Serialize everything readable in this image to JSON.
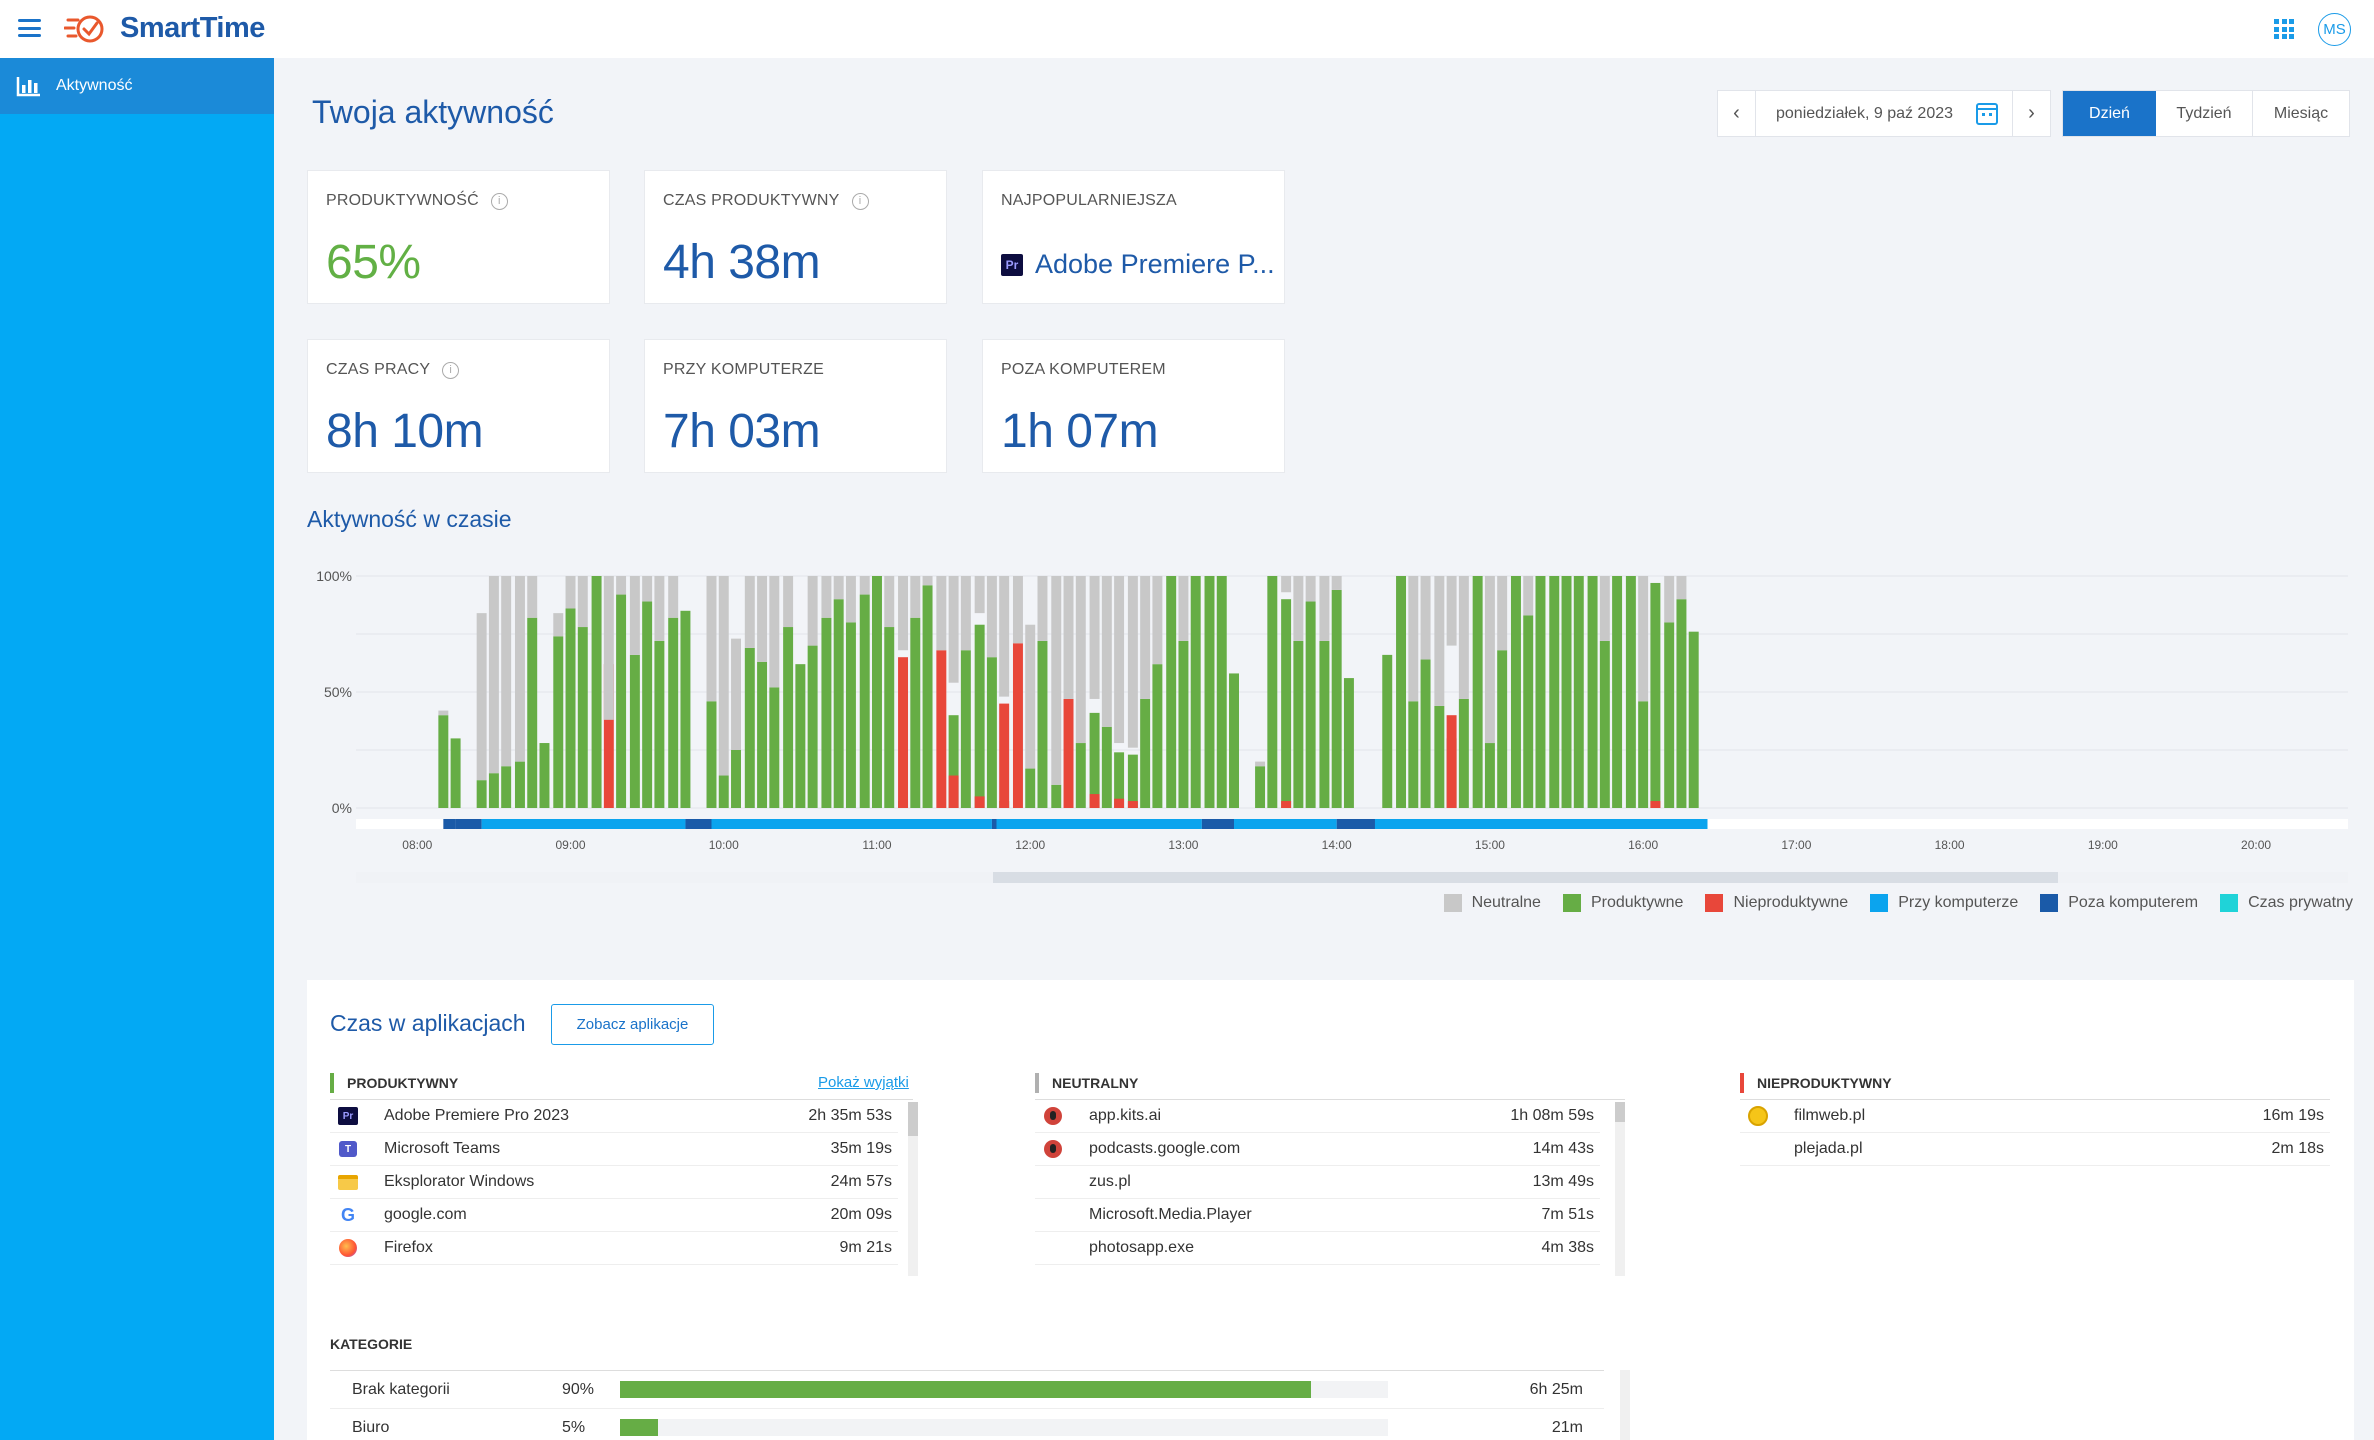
{
  "app": {
    "name": "SmartTime",
    "user_initials": "MS"
  },
  "sidebar": {
    "items": [
      {
        "label": "Aktywność"
      }
    ]
  },
  "page": {
    "title": "Twoja aktywność"
  },
  "datebar": {
    "date": "poniedziałek, 9 paź 2023",
    "periods": [
      "Dzień",
      "Tydzień",
      "Miesiąc"
    ],
    "active_period": "Dzień"
  },
  "stats": {
    "productivity": {
      "label": "PRODUKTYWNOŚĆ",
      "value": "65%"
    },
    "productive_time": {
      "label": "CZAS PRODUKTYWNY",
      "value": "4h 38m"
    },
    "most_popular": {
      "label": "NAJPOPULARNIEJSZA",
      "value": "Adobe Premiere P...",
      "icon": "Pr"
    },
    "work_time": {
      "label": "CZAS PRACY",
      "value": "8h 10m"
    },
    "at_computer": {
      "label": "PRZY KOMPUTERZE",
      "value": "7h 03m"
    },
    "away_computer": {
      "label": "POZA KOMPUTEREM",
      "value": "1h 07m"
    }
  },
  "activity": {
    "title": "Aktywność w czasie"
  },
  "colors": {
    "neutral": "#c8c8c8",
    "productive": "#66ad45",
    "unproductive": "#e8473a",
    "at_computer": "#0ba4ee",
    "away_computer": "#1a5aa8",
    "private": "#1fd3d8"
  },
  "chart_data": {
    "type": "bar",
    "stacked": true,
    "y_ticks": [
      "100%",
      "50%",
      "0%"
    ],
    "x_ticks": [
      "08:00",
      "09:00",
      "10:00",
      "11:00",
      "12:00",
      "13:00",
      "14:00",
      "15:00",
      "16:00",
      "17:00",
      "18:00",
      "19:00",
      "20:00"
    ],
    "x_range_hours": [
      7.6,
      20.6
    ],
    "ylim": [
      0,
      100
    ],
    "bar_interval_minutes": 5,
    "bars": [
      {
        "t": 8.17,
        "p": 40,
        "n": 2,
        "u": 0
      },
      {
        "t": 8.25,
        "p": 30,
        "n": 0,
        "u": 0
      },
      {
        "t": 8.42,
        "p": 12,
        "n": 72,
        "u": 0
      },
      {
        "t": 8.5,
        "p": 15,
        "n": 85,
        "u": 0
      },
      {
        "t": 8.58,
        "p": 18,
        "n": 82,
        "u": 0
      },
      {
        "t": 8.67,
        "p": 20,
        "n": 80,
        "u": 0
      },
      {
        "t": 8.75,
        "p": 82,
        "n": 18,
        "u": 0
      },
      {
        "t": 8.83,
        "p": 28,
        "n": 0,
        "u": 0
      },
      {
        "t": 8.92,
        "p": 74,
        "n": 10,
        "u": 0
      },
      {
        "t": 9.0,
        "p": 86,
        "n": 14,
        "u": 0
      },
      {
        "t": 9.08,
        "p": 78,
        "n": 22,
        "u": 0
      },
      {
        "t": 9.17,
        "p": 100,
        "n": 0,
        "u": 0
      },
      {
        "t": 9.25,
        "p": 38,
        "n": 62,
        "u": 62
      },
      {
        "t": 9.33,
        "p": 92,
        "n": 8,
        "u": 0
      },
      {
        "t": 9.42,
        "p": 66,
        "n": 34,
        "u": 0
      },
      {
        "t": 9.5,
        "p": 89,
        "n": 11,
        "u": 0
      },
      {
        "t": 9.58,
        "p": 72,
        "n": 28,
        "u": 0
      },
      {
        "t": 9.67,
        "p": 82,
        "n": 18,
        "u": 0
      },
      {
        "t": 9.75,
        "p": 85,
        "n": 0,
        "u": 0
      },
      {
        "t": 9.92,
        "p": 46,
        "n": 54,
        "u": 0
      },
      {
        "t": 10.0,
        "p": 14,
        "n": 86,
        "u": 0
      },
      {
        "t": 10.08,
        "p": 25,
        "n": 48,
        "u": 0
      },
      {
        "t": 10.17,
        "p": 69,
        "n": 31,
        "u": 0
      },
      {
        "t": 10.25,
        "p": 63,
        "n": 37,
        "u": 0
      },
      {
        "t": 10.33,
        "p": 52,
        "n": 48,
        "u": 0
      },
      {
        "t": 10.42,
        "p": 78,
        "n": 22,
        "u": 0
      },
      {
        "t": 10.5,
        "p": 62,
        "n": 0,
        "u": 0
      },
      {
        "t": 10.58,
        "p": 70,
        "n": 30,
        "u": 0
      },
      {
        "t": 10.67,
        "p": 82,
        "n": 18,
        "u": 0
      },
      {
        "t": 10.75,
        "p": 90,
        "n": 10,
        "u": 0
      },
      {
        "t": 10.83,
        "p": 80,
        "n": 20,
        "u": 0
      },
      {
        "t": 10.92,
        "p": 92,
        "n": 8,
        "u": 0
      },
      {
        "t": 11.0,
        "p": 100,
        "n": 0,
        "u": 0
      },
      {
        "t": 11.08,
        "p": 78,
        "n": 22,
        "u": 0
      },
      {
        "t": 11.17,
        "p": 68,
        "n": 32,
        "u": 65
      },
      {
        "t": 11.25,
        "p": 82,
        "n": 18,
        "u": 0
      },
      {
        "t": 11.33,
        "p": 96,
        "n": 4,
        "u": 0
      },
      {
        "t": 11.42,
        "p": 68,
        "n": 32,
        "u": 68
      },
      {
        "t": 11.5,
        "p": 54,
        "n": 46,
        "u": 14
      },
      {
        "t": 11.58,
        "p": 68,
        "n": 32,
        "u": 0
      },
      {
        "t": 11.67,
        "p": 84,
        "n": 16,
        "u": 5
      },
      {
        "t": 11.75,
        "p": 65,
        "n": 35,
        "u": 0
      },
      {
        "t": 11.83,
        "p": 48,
        "n": 52,
        "u": 45
      },
      {
        "t": 11.92,
        "p": 71,
        "n": 29,
        "u": 71
      },
      {
        "t": 12.0,
        "p": 17,
        "n": 62,
        "u": 0
      },
      {
        "t": 12.08,
        "p": 72,
        "n": 28,
        "u": 0
      },
      {
        "t": 12.17,
        "p": 10,
        "n": 90,
        "u": 0
      },
      {
        "t": 12.25,
        "p": 47,
        "n": 53,
        "u": 47
      },
      {
        "t": 12.33,
        "p": 28,
        "n": 72,
        "u": 0
      },
      {
        "t": 12.42,
        "p": 47,
        "n": 53,
        "u": 6
      },
      {
        "t": 12.5,
        "p": 35,
        "n": 65,
        "u": 0
      },
      {
        "t": 12.58,
        "p": 28,
        "n": 72,
        "u": 4
      },
      {
        "t": 12.67,
        "p": 26,
        "n": 74,
        "u": 3
      },
      {
        "t": 12.75,
        "p": 47,
        "n": 53,
        "u": 0
      },
      {
        "t": 12.83,
        "p": 62,
        "n": 38,
        "u": 0
      },
      {
        "t": 12.92,
        "p": 100,
        "n": 0,
        "u": 0
      },
      {
        "t": 13.0,
        "p": 72,
        "n": 28,
        "u": 0
      },
      {
        "t": 13.08,
        "p": 100,
        "n": 0,
        "u": 0
      },
      {
        "t": 13.17,
        "p": 100,
        "n": 0,
        "u": 0
      },
      {
        "t": 13.25,
        "p": 100,
        "n": 0,
        "u": 0
      },
      {
        "t": 13.33,
        "p": 58,
        "n": 0,
        "u": 0
      },
      {
        "t": 13.5,
        "p": 18,
        "n": 2,
        "u": 0
      },
      {
        "t": 13.58,
        "p": 100,
        "n": 0,
        "u": 0
      },
      {
        "t": 13.67,
        "p": 93,
        "n": 7,
        "u": 3
      },
      {
        "t": 13.75,
        "p": 72,
        "n": 28,
        "u": 0
      },
      {
        "t": 13.83,
        "p": 89,
        "n": 11,
        "u": 0
      },
      {
        "t": 13.92,
        "p": 72,
        "n": 28,
        "u": 0
      },
      {
        "t": 14.0,
        "p": 94,
        "n": 6,
        "u": 0
      },
      {
        "t": 14.08,
        "p": 56,
        "n": 0,
        "u": 0
      },
      {
        "t": 14.33,
        "p": 66,
        "n": 0,
        "u": 0
      },
      {
        "t": 14.42,
        "p": 100,
        "n": 0,
        "u": 0
      },
      {
        "t": 14.5,
        "p": 46,
        "n": 54,
        "u": 0
      },
      {
        "t": 14.58,
        "p": 64,
        "n": 36,
        "u": 0
      },
      {
        "t": 14.67,
        "p": 44,
        "n": 56,
        "u": 0
      },
      {
        "t": 14.75,
        "p": 70,
        "n": 30,
        "u": 40
      },
      {
        "t": 14.83,
        "p": 47,
        "n": 53,
        "u": 0
      },
      {
        "t": 14.92,
        "p": 100,
        "n": 0,
        "u": 0
      },
      {
        "t": 15.0,
        "p": 28,
        "n": 72,
        "u": 0
      },
      {
        "t": 15.08,
        "p": 68,
        "n": 32,
        "u": 0
      },
      {
        "t": 15.17,
        "p": 100,
        "n": 0,
        "u": 0
      },
      {
        "t": 15.25,
        "p": 83,
        "n": 17,
        "u": 0
      },
      {
        "t": 15.33,
        "p": 100,
        "n": 0,
        "u": 0
      },
      {
        "t": 15.42,
        "p": 100,
        "n": 0,
        "u": 0
      },
      {
        "t": 15.5,
        "p": 100,
        "n": 0,
        "u": 0
      },
      {
        "t": 15.58,
        "p": 100,
        "n": 0,
        "u": 0
      },
      {
        "t": 15.67,
        "p": 100,
        "n": 0,
        "u": 0
      },
      {
        "t": 15.75,
        "p": 72,
        "n": 28,
        "u": 0
      },
      {
        "t": 15.83,
        "p": 100,
        "n": 0,
        "u": 0
      },
      {
        "t": 15.92,
        "p": 100,
        "n": 0,
        "u": 0
      },
      {
        "t": 16.0,
        "p": 46,
        "n": 54,
        "u": 0
      },
      {
        "t": 16.08,
        "p": 100,
        "n": 0,
        "u": 3
      },
      {
        "t": 16.17,
        "p": 80,
        "n": 20,
        "u": 0
      },
      {
        "t": 16.25,
        "p": 90,
        "n": 10,
        "u": 0
      },
      {
        "t": 16.33,
        "p": 76,
        "n": 0,
        "u": 0
      }
    ],
    "presence_strip": [
      {
        "from": 8.17,
        "to": 8.25,
        "state": "away"
      },
      {
        "from": 8.25,
        "to": 8.42,
        "state": "away"
      },
      {
        "from": 8.42,
        "to": 9.75,
        "state": "at"
      },
      {
        "from": 9.75,
        "to": 9.92,
        "state": "away"
      },
      {
        "from": 9.92,
        "to": 11.75,
        "state": "at"
      },
      {
        "from": 11.75,
        "to": 11.78,
        "state": "away"
      },
      {
        "from": 11.78,
        "to": 13.12,
        "state": "at"
      },
      {
        "from": 13.12,
        "to": 13.33,
        "state": "away"
      },
      {
        "from": 13.33,
        "to": 14.0,
        "state": "at"
      },
      {
        "from": 14.0,
        "to": 14.25,
        "state": "away"
      },
      {
        "from": 14.25,
        "to": 16.42,
        "state": "at"
      }
    ]
  },
  "legend": [
    {
      "label": "Neutralne",
      "color_key": "neutral"
    },
    {
      "label": "Produktywne",
      "color_key": "productive"
    },
    {
      "label": "Nieproduktywne",
      "color_key": "unproductive"
    },
    {
      "label": "Przy komputerze",
      "color_key": "at_computer"
    },
    {
      "label": "Poza komputerem",
      "color_key": "away_computer"
    },
    {
      "label": "Czas prywatny",
      "color_key": "private"
    }
  ],
  "apps": {
    "title": "Czas w aplikacjach",
    "button": "Zobacz aplikacje",
    "show_exceptions": "Pokaż wyjątki",
    "productive": {
      "label": "PRODUKTYWNY",
      "items": [
        {
          "name": "Adobe Premiere Pro 2023",
          "time": "2h 35m 53s",
          "icon": "premiere-icon"
        },
        {
          "name": "Microsoft Teams",
          "time": "35m 19s",
          "icon": "teams-icon"
        },
        {
          "name": "Eksplorator Windows",
          "time": "24m 57s",
          "icon": "folder-icon"
        },
        {
          "name": "google.com",
          "time": "20m 09s",
          "icon": "google-icon"
        },
        {
          "name": "Firefox",
          "time": "9m 21s",
          "icon": "firefox-icon"
        }
      ]
    },
    "neutral": {
      "label": "NEUTRALNY",
      "items": [
        {
          "name": "app.kits.ai",
          "time": "1h 08m 59s",
          "icon": "podcast-icon"
        },
        {
          "name": "podcasts.google.com",
          "time": "14m 43s",
          "icon": "podcast-icon"
        },
        {
          "name": "zus.pl",
          "time": "13m 49s",
          "icon": ""
        },
        {
          "name": "Microsoft.Media.Player",
          "time": "7m 51s",
          "icon": ""
        },
        {
          "name": "photosapp.exe",
          "time": "4m 38s",
          "icon": ""
        }
      ]
    },
    "unproductive": {
      "label": "NIEPRODUKTYWNY",
      "items": [
        {
          "name": "filmweb.pl",
          "time": "16m 19s",
          "icon": "filmweb-icon"
        },
        {
          "name": "plejada.pl",
          "time": "2m 18s",
          "icon": ""
        }
      ]
    }
  },
  "categories": {
    "title": "KATEGORIE",
    "items": [
      {
        "name": "Brak kategorii",
        "pct": "90%",
        "fraction": 0.9,
        "time": "6h 25m"
      },
      {
        "name": "Biuro",
        "pct": "5%",
        "fraction": 0.05,
        "time": "21m"
      }
    ]
  }
}
